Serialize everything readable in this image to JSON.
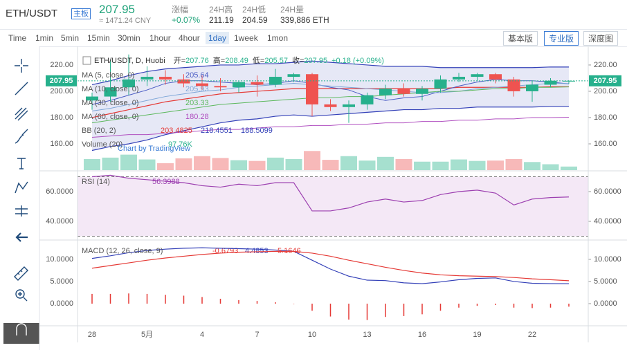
{
  "header": {
    "symbol": "ETH/USDT",
    "board": "主板",
    "cny": "≈ 1471.24 CNY",
    "stats": [
      {
        "label": "涨幅",
        "value": "+0.07%"
      },
      {
        "label": "24H高",
        "value": "211.19"
      },
      {
        "label": "24H低",
        "value": "204.59"
      },
      {
        "label": "24H量",
        "value": "339,886 ETH"
      }
    ]
  },
  "toolbar": {
    "intervals": [
      "Time",
      "1min",
      "5min",
      "15min",
      "30min",
      "1hour",
      "4hour",
      "1day",
      "1week",
      "1mon"
    ],
    "active": 7,
    "views": [
      "基本版",
      "专业版",
      "深度图"
    ],
    "active_view": 1
  },
  "watermark": "Chart by TradingView",
  "chart_data": [
    {
      "type": "candlestick",
      "title": "ETH/USDT, D, Huobi",
      "ohlc_labels": [
        "开=",
        "高=",
        "低=",
        "收="
      ],
      "change": "+0.18 (+0.09%)",
      "categories": [
        "28",
        null,
        null,
        "5月",
        null,
        null,
        "4",
        null,
        null,
        "7",
        null,
        null,
        "10",
        null,
        null,
        "13",
        null,
        null,
        "16",
        null,
        null,
        "19",
        null,
        null,
        "22",
        null,
        null
      ],
      "open": [
        193,
        196,
        203,
        209,
        211,
        209,
        206,
        204,
        203,
        207,
        205,
        211,
        213,
        190,
        188,
        190,
        197,
        202,
        198,
        202,
        209,
        211,
        213,
        209,
        200,
        205,
        207.76
      ],
      "high": [
        199,
        224,
        228,
        219,
        216,
        213,
        212,
        210,
        208,
        212,
        217,
        214,
        214,
        194,
        193,
        199,
        205,
        206,
        204,
        212,
        214,
        214,
        214,
        211,
        208,
        210,
        208.49
      ],
      "low": [
        186,
        192,
        197,
        204,
        205,
        203,
        201,
        200,
        199,
        196,
        203,
        207,
        181,
        185,
        176,
        186,
        194,
        196,
        193,
        199,
        207,
        208,
        206,
        196,
        192,
        203,
        205.57
      ],
      "close": [
        196,
        203,
        209,
        211,
        209,
        206,
        204,
        203,
        207,
        205,
        211,
        213,
        190,
        188,
        190,
        197,
        202,
        198,
        202,
        209,
        211,
        213,
        209,
        200,
        205,
        208,
        207.95
      ],
      "up_color": "#26b08c",
      "down_color": "#ef5350",
      "ylim": [
        140,
        232.6
      ],
      "yticks": [
        {
          "value": 160,
          "label": "160.00"
        },
        {
          "value": 180,
          "label": "180.00"
        },
        {
          "value": 200,
          "label": "200.00"
        },
        {
          "value": 220,
          "label": "220.00"
        }
      ],
      "overlays": [
        {
          "name": "MA (5, close, 0)",
          "color": "#4a5bc4",
          "values": [
            190,
            193,
            197,
            201,
            206,
            208,
            208,
            207,
            206,
            205,
            206,
            208,
            206,
            203,
            201,
            196,
            193,
            195,
            196,
            200,
            204,
            207,
            209,
            208,
            208,
            207,
            205.64
          ]
        },
        {
          "name": "MA (10, close, 0)",
          "color": "#7fa7d8",
          "values": [
            185,
            187,
            190,
            193,
            196,
            198,
            200,
            201,
            203,
            204,
            205,
            206,
            205,
            204,
            203,
            202,
            201,
            200,
            199,
            199,
            200,
            202,
            203,
            204,
            205,
            206,
            205.93
          ]
        },
        {
          "name": "MA (30, close, 0)",
          "color": "#5cb85c",
          "values": [
            176,
            178,
            180,
            182,
            184,
            186,
            188,
            190,
            191,
            192,
            193,
            194,
            195,
            195,
            196,
            196,
            197,
            198,
            199,
            200,
            200,
            201,
            202,
            202,
            203,
            203,
            203.33
          ]
        },
        {
          "name": "MA (60, close, 0)",
          "color": "#b04fc0",
          "values": [
            165,
            166,
            167,
            167,
            168,
            169,
            170,
            171,
            171,
            172,
            173,
            173,
            174,
            174,
            175,
            175,
            176,
            176,
            177,
            177,
            178,
            178,
            179,
            179,
            180,
            180,
            180.28
          ]
        }
      ],
      "bands": {
        "name": "BB (20, 2)",
        "fill": "#e6e8f6",
        "series": [
          {
            "color": "#e53935",
            "values": [
              180,
              183,
              186,
              189,
              192,
              194,
              196,
              198,
              199,
              200,
              201,
              202,
              202,
              202,
              202,
              202,
              202,
              202,
              202,
              202,
              203,
              203,
              203,
              203,
              203,
              203.5,
              203.4825
            ]
          },
          {
            "color": "#3441b8",
            "values": [
              205,
              208,
              212,
              215,
              217,
              218,
              219,
              220,
              220,
              221,
              221,
              222,
              223,
              222,
              221,
              220,
              219,
              219,
              219,
              218,
              218,
              218,
              218,
              218,
              218,
              218.5,
              218.4551
            ]
          },
          {
            "color": "#3441b8",
            "values": [
              155,
              158,
              160,
              163,
              167,
              170,
              173,
              176,
              178,
              179,
              181,
              182,
              181,
              182,
              183,
              184,
              185,
              186,
              186,
              187,
              187,
              188,
              188,
              188,
              188,
              188.5,
              188.5099
            ]
          }
        ]
      },
      "volume": {
        "name": "Volume (20)",
        "ylim": [
          0,
          3300000
        ],
        "up_color": "#a6e0cf",
        "down_color": "#f7b9b9",
        "values": [
          300000,
          340000,
          420000,
          290000,
          190000,
          320000,
          380000,
          330000,
          270000,
          250000,
          340000,
          300000,
          520000,
          280000,
          380000,
          260000,
          360000,
          300000,
          230000,
          230000,
          290000,
          250000,
          260000,
          300000,
          220000,
          160000,
          97760
        ],
        "value_labels": [
          null,
          null,
          null,
          null,
          null,
          null,
          null,
          null,
          null,
          null,
          null,
          null,
          null,
          null,
          null,
          null,
          null,
          null,
          null,
          null,
          null,
          null,
          null,
          null,
          null,
          null,
          "97.76K"
        ]
      }
    },
    {
      "type": "line",
      "name": "RSI (14)",
      "color": "#9c3fb0",
      "fill": "#f4e8f6",
      "levels": [
        70,
        30
      ],
      "values": [
        70,
        71,
        69,
        68,
        67,
        66,
        64,
        63,
        65,
        64,
        66,
        66,
        47,
        47,
        49,
        53,
        55,
        53,
        54,
        58,
        60,
        61,
        59,
        51,
        55,
        56,
        56.3988
      ],
      "ylim": [
        27.9,
        73.5
      ],
      "yticks": [
        {
          "value": 40,
          "label": "40.0000"
        },
        {
          "value": 60,
          "label": "60.0000"
        }
      ]
    },
    {
      "type": "macd",
      "name": "MACD (12, 26, close, 9)",
      "series": [
        {
          "color": "#e53935",
          "kind": "histogram",
          "values": [
            2.2,
            2.2,
            2.3,
            2.2,
            2.0,
            1.8,
            1.5,
            1.1,
            0.8,
            0.6,
            0.3,
            0.0,
            -1.6,
            -2.9,
            -3.6,
            -3.7,
            -3.0,
            -2.8,
            -2.4,
            -1.6,
            -0.9,
            -0.5,
            -0.3,
            -0.9,
            -1.0,
            -0.9,
            -0.6793
          ]
        },
        {
          "color": "#3441b8",
          "kind": "line",
          "values": [
            10.2,
            10.8,
            11.5,
            12.0,
            12.3,
            12.5,
            12.6,
            12.5,
            12.4,
            12.3,
            12.1,
            11.8,
            9.8,
            7.8,
            6.2,
            5.3,
            5.2,
            4.7,
            4.5,
            4.9,
            5.4,
            5.7,
            5.8,
            5.0,
            4.6,
            4.5,
            4.4853
          ]
        },
        {
          "color": "#e53935",
          "kind": "line",
          "values": [
            8.0,
            8.6,
            9.2,
            9.8,
            10.3,
            10.7,
            11.1,
            11.4,
            11.6,
            11.7,
            11.8,
            11.8,
            11.4,
            10.7,
            9.8,
            9.0,
            8.2,
            7.5,
            6.9,
            6.5,
            6.3,
            6.2,
            6.1,
            5.9,
            5.6,
            5.4,
            5.1646
          ]
        }
      ],
      "ylim": [
        -4.84,
        14.2
      ],
      "yticks": [
        {
          "value": 0,
          "label": "0.0000"
        },
        {
          "value": 5,
          "label": "5.0000"
        },
        {
          "value": 10,
          "label": "10.0000"
        }
      ]
    }
  ]
}
